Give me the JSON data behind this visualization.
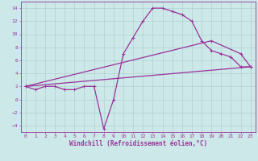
{
  "xlabel": "Windchill (Refroidissement éolien,°C)",
  "bg_color": "#cce8e8",
  "grid_color": "#aacccc",
  "line_color": "#993399",
  "xlim": [
    -0.5,
    23.5
  ],
  "ylim": [
    -5,
    15
  ],
  "xticks": [
    0,
    1,
    2,
    3,
    4,
    5,
    6,
    7,
    8,
    9,
    10,
    11,
    12,
    13,
    14,
    15,
    16,
    17,
    18,
    19,
    20,
    21,
    22,
    23
  ],
  "yticks": [
    -4,
    -2,
    0,
    2,
    4,
    6,
    8,
    10,
    12,
    14
  ],
  "line1_x": [
    0,
    1,
    2,
    3,
    4,
    5,
    6,
    7,
    8,
    9,
    10,
    11,
    12,
    13,
    14,
    15,
    16,
    17,
    18,
    19,
    20,
    21,
    22,
    23
  ],
  "line1_y": [
    2,
    1.5,
    2,
    2,
    1.5,
    1.5,
    2,
    2,
    -4.5,
    0,
    7,
    9.5,
    12,
    14,
    14,
    13.5,
    13,
    12,
    9,
    7.5,
    7,
    6.5,
    5,
    5
  ],
  "line2_x": [
    0,
    23
  ],
  "line2_y": [
    2,
    5
  ],
  "line3_x": [
    0,
    19,
    22,
    23
  ],
  "line3_y": [
    2,
    9,
    7,
    5
  ],
  "marker": "+",
  "markersize": 3.5,
  "linewidth": 0.9,
  "tick_fontsize": 4.5,
  "xlabel_fontsize": 5.5,
  "xlabel_color": "#993399"
}
